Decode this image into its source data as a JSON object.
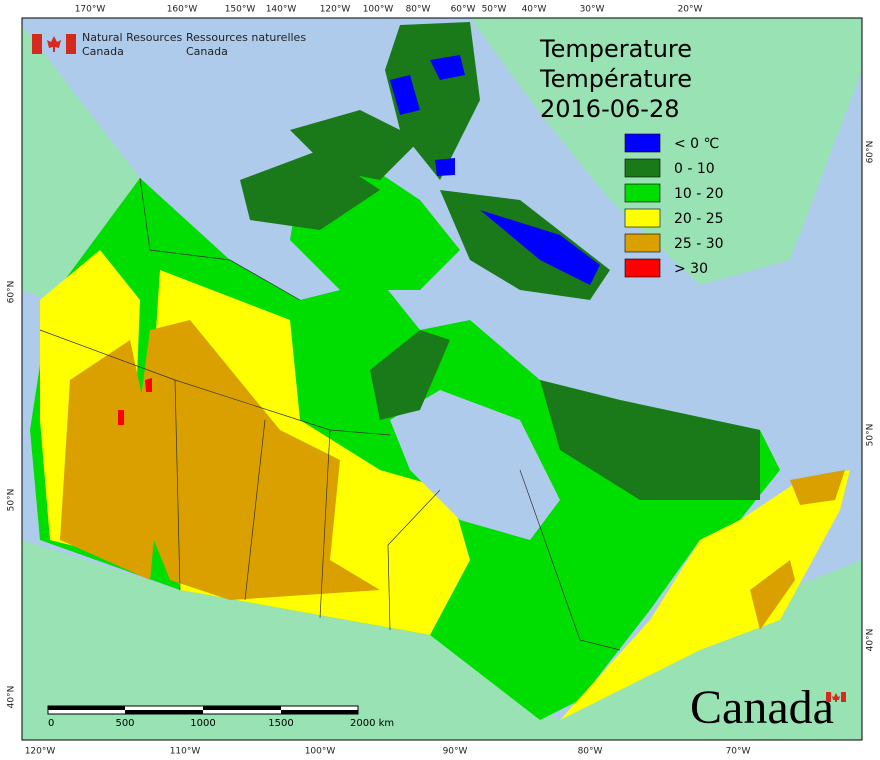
{
  "header": {
    "en_dept": "Natural Resources",
    "en_country": "Canada",
    "fr_dept": "Ressources naturelles",
    "fr_country": "Canada"
  },
  "title": {
    "en": "Temperature",
    "fr": "Température",
    "date": "2016-06-28"
  },
  "legend": [
    {
      "label": "< 0 ℃",
      "color": "#0000ff"
    },
    {
      "label": "0 - 10",
      "color": "#1a7a1a"
    },
    {
      "label": "10 - 20",
      "color": "#00dd00"
    },
    {
      "label": "20 - 25",
      "color": "#ffff00"
    },
    {
      "label": "25 - 30",
      "color": "#d9a000"
    },
    {
      "label": "> 30",
      "color": "#ff0000"
    }
  ],
  "graticule": {
    "top": [
      "170°W",
      "160°W",
      "150°W",
      "140°W",
      "120°W",
      "100°W",
      "80°W",
      "60°W",
      "50°W",
      "40°W",
      "30°W",
      "20°W"
    ],
    "bottom": [
      "120°W",
      "110°W",
      "100°W",
      "90°W",
      "80°W",
      "70°W"
    ],
    "left": [
      "60°N",
      "50°N",
      "40°N"
    ],
    "right": [
      "60°N",
      "50°N",
      "40°N"
    ]
  },
  "scale_bar": {
    "labels": [
      "0",
      "500",
      "1000",
      "1500",
      "2000 km"
    ]
  },
  "wordmark": "Canada"
}
